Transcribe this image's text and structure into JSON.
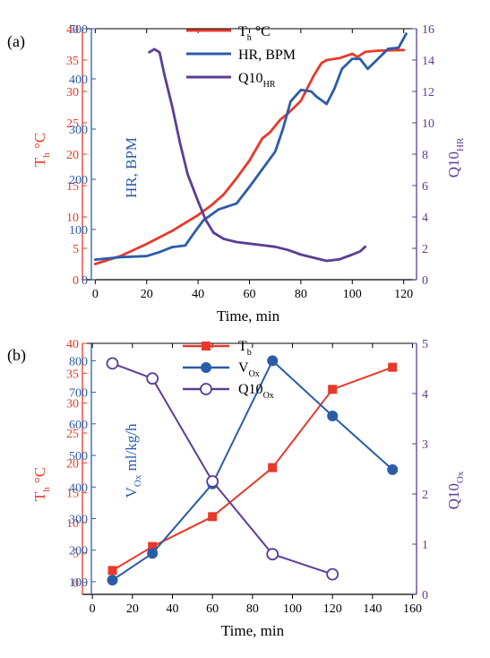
{
  "chart_data": [
    {
      "panel_label": "(a)",
      "type": "line",
      "xlabel": "Time, min",
      "xlim": [
        -5,
        125
      ],
      "xticks": [
        0,
        20,
        40,
        60,
        80,
        100,
        120
      ],
      "axes": {
        "left": {
          "label_main": "T",
          "label_sub": "h",
          "label_suffix": " °C",
          "lim": [
            0,
            40
          ],
          "ticks": [
            0,
            5,
            10,
            15,
            20,
            25,
            30,
            35,
            40
          ],
          "color": "#e8392b"
        },
        "mid": {
          "label": "HR, BPM",
          "lim": [
            0,
            500
          ],
          "ticks": [
            0,
            100,
            200,
            300,
            400,
            500
          ],
          "color": "#2b5ca8"
        },
        "right": {
          "label_main": "Q10",
          "label_sub": "HR",
          "lim": [
            0,
            16
          ],
          "ticks": [
            0,
            2,
            4,
            6,
            8,
            10,
            12,
            14,
            16
          ],
          "color": "#5a3d96"
        }
      },
      "legend_position": "top-center",
      "series": [
        {
          "name": "Th °C",
          "name_main": "T",
          "name_sub": "h",
          "name_suffix": " °C",
          "axis": "left",
          "color": "#e8392b",
          "x": [
            0,
            10,
            20,
            30,
            40,
            45,
            50,
            55,
            60,
            65,
            68,
            70,
            72,
            75,
            80,
            85,
            88,
            90,
            95,
            100,
            102,
            105,
            110,
            120
          ],
          "y": [
            2.5,
            3.8,
            5.7,
            7.8,
            10.3,
            11.8,
            13.6,
            16.2,
            19,
            22.5,
            23.5,
            24.5,
            25.5,
            26.5,
            28.5,
            32.5,
            34.5,
            35,
            35.3,
            36,
            35.5,
            36.3,
            36.5,
            36.6
          ]
        },
        {
          "name": "HR, BPM",
          "axis": "mid",
          "color": "#2b5ca8",
          "x": [
            0,
            10,
            20,
            25,
            30,
            35,
            38,
            42,
            48,
            55,
            60,
            65,
            70,
            73,
            76,
            80,
            84,
            86,
            90,
            93,
            96,
            100,
            103,
            106,
            110,
            114,
            118,
            121
          ],
          "y": [
            40,
            45,
            47,
            55,
            65,
            68,
            90,
            118,
            140,
            152,
            185,
            220,
            255,
            300,
            355,
            378,
            375,
            365,
            350,
            380,
            420,
            440,
            440,
            420,
            440,
            460,
            462,
            490
          ]
        },
        {
          "name": "Q10HR",
          "name_main": "Q10",
          "name_sub": "HR",
          "axis": "right",
          "color": "#5a3d96",
          "x": [
            21,
            23,
            25,
            27,
            30,
            33,
            36,
            40,
            43,
            46,
            50,
            55,
            60,
            65,
            70,
            75,
            80,
            85,
            90,
            95,
            100,
            103,
            105
          ],
          "y": [
            14.5,
            14.7,
            14.5,
            13,
            11,
            8.7,
            6.7,
            5,
            3.8,
            3.0,
            2.6,
            2.4,
            2.3,
            2.2,
            2.1,
            1.9,
            1.6,
            1.4,
            1.2,
            1.3,
            1.6,
            1.8,
            2.1
          ]
        }
      ]
    },
    {
      "panel_label": "(b)",
      "type": "line",
      "xlabel": "Time, min",
      "xlim": [
        -5,
        162
      ],
      "xticks": [
        0,
        20,
        40,
        60,
        80,
        100,
        120,
        140,
        160
      ],
      "axes": {
        "left": {
          "label_main": "T",
          "label_sub": "h",
          "label_suffix": " °C",
          "lim": [
            -2,
            40
          ],
          "ticks": [
            0,
            5,
            10,
            15,
            20,
            25,
            30,
            35,
            40
          ],
          "color": "#e8392b"
        },
        "mid": {
          "label_pre": "V",
          "label_sub": "Ox",
          "label_post": " ml/kg/h",
          "lim": [
            60,
            855
          ],
          "ticks": [
            100,
            200,
            300,
            400,
            500,
            600,
            700,
            800
          ],
          "color": "#2b5ca8"
        },
        "right": {
          "label_main": "Q10",
          "label_sub": "Ox",
          "lim": [
            0,
            5
          ],
          "ticks": [
            0,
            1,
            2,
            3,
            4,
            5
          ],
          "color": "#5a3d96"
        }
      },
      "legend_position": "top-center",
      "series": [
        {
          "name": "Tb",
          "name_main": "T",
          "name_sub": "b",
          "axis": "left",
          "marker": "square",
          "color": "#e8392b",
          "x": [
            10,
            30,
            60,
            90,
            120,
            150
          ],
          "y": [
            2,
            6,
            11,
            19.2,
            32.3,
            36
          ]
        },
        {
          "name": "VOx",
          "name_main": "V",
          "name_sub": "Ox",
          "axis": "mid",
          "marker": "circle",
          "color": "#2b5ca8",
          "x": [
            10,
            30,
            60,
            90,
            120,
            150
          ],
          "y": [
            105,
            190,
            410,
            800,
            625,
            455
          ]
        },
        {
          "name": "Q10Ox",
          "name_main": "Q10",
          "name_sub": "Ox",
          "axis": "right",
          "marker": "open-circle",
          "color": "#5a3d96",
          "x": [
            10,
            30,
            60,
            90,
            120
          ],
          "y": [
            4.6,
            4.3,
            2.25,
            0.8,
            0.4
          ]
        }
      ]
    }
  ]
}
